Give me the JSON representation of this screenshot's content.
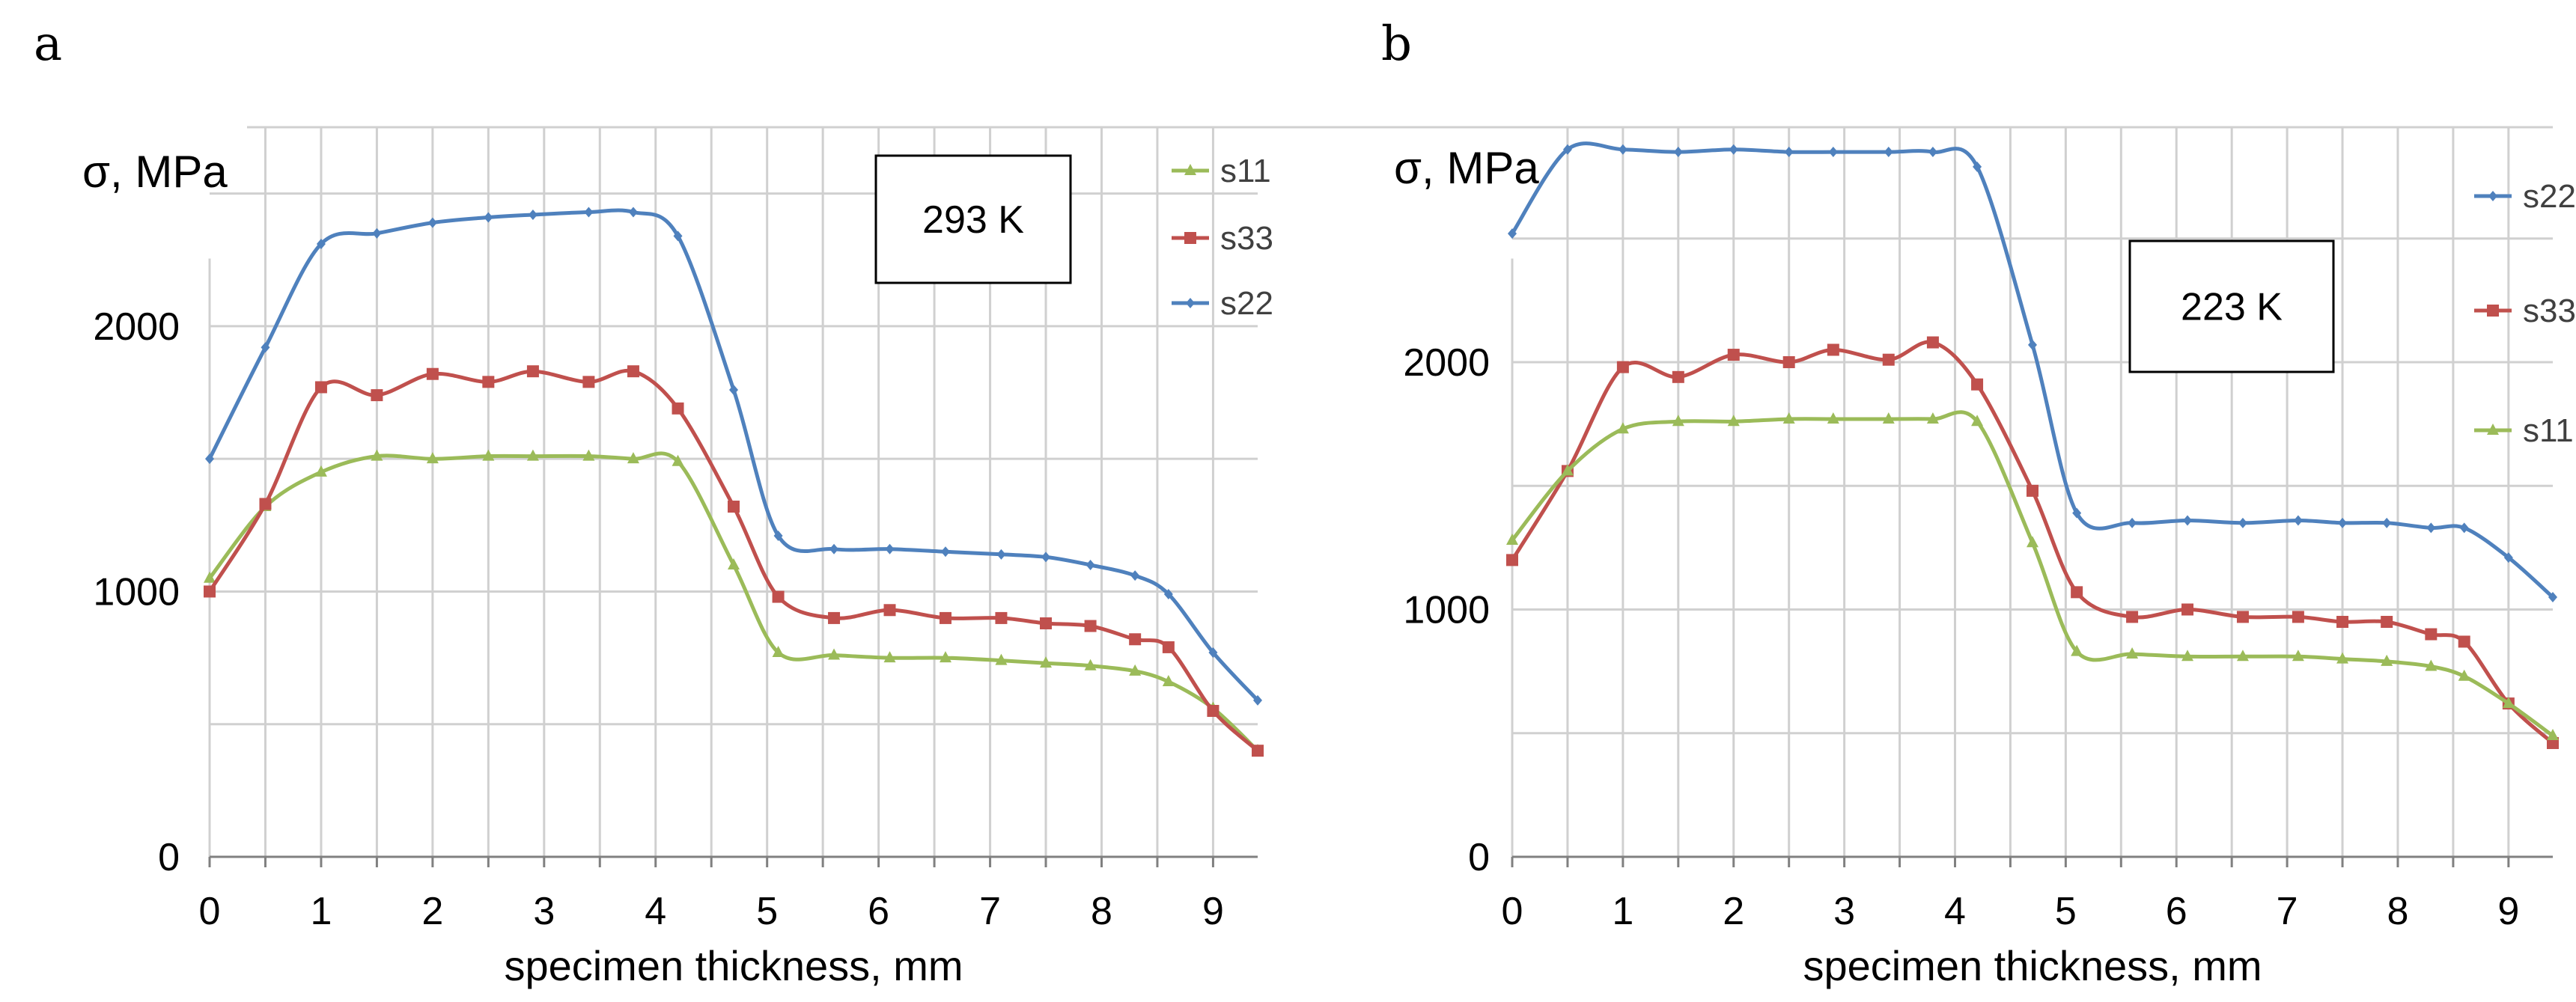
{
  "chart_data": [
    {
      "type": "line",
      "panel_label": "a",
      "ylabel": "σ, MPa",
      "xlabel": "specimen thickness, mm",
      "annotation": "293 K",
      "xlim": [
        0,
        9.4
      ],
      "ylim": [
        0,
        2750
      ],
      "x_ticks": [
        "0",
        "1",
        "2",
        "3",
        "4",
        "5",
        "6",
        "7",
        "8",
        "9"
      ],
      "y_ticks": [
        {
          "value": 0,
          "label": "0"
        },
        {
          "value": 1000,
          "label": "1000"
        },
        {
          "value": 2000,
          "label": "2000"
        }
      ],
      "grid": true,
      "legend_position": "top-right",
      "x": [
        0,
        0.5,
        1,
        1.5,
        2,
        2.5,
        2.9,
        3.4,
        3.8,
        4.2,
        4.7,
        5.1,
        5.6,
        6.1,
        6.6,
        7.1,
        7.5,
        7.9,
        8.3,
        8.6,
        9,
        9.4
      ],
      "series": [
        {
          "name": "s11",
          "color": "#9bbb59",
          "marker": "triangle",
          "values": [
            1050,
            1320,
            1450,
            1510,
            1500,
            1510,
            1510,
            1510,
            1500,
            1490,
            1100,
            770,
            760,
            750,
            750,
            740,
            730,
            720,
            700,
            660,
            560,
            400
          ]
        },
        {
          "name": "s33",
          "color": "#c0504d",
          "marker": "square",
          "values": [
            1000,
            1330,
            1770,
            1740,
            1820,
            1790,
            1830,
            1790,
            1830,
            1690,
            1320,
            980,
            900,
            930,
            900,
            900,
            880,
            870,
            820,
            790,
            550,
            400
          ]
        },
        {
          "name": "s22",
          "color": "#4f81bd",
          "marker": "diamond",
          "values": [
            1500,
            1920,
            2310,
            2350,
            2390,
            2410,
            2420,
            2430,
            2430,
            2340,
            1760,
            1210,
            1160,
            1160,
            1150,
            1140,
            1130,
            1100,
            1060,
            990,
            770,
            590
          ]
        }
      ]
    },
    {
      "type": "line",
      "panel_label": "b",
      "ylabel": "σ, MPa",
      "xlabel": "specimen thickness, mm",
      "annotation": "223 K",
      "xlim": [
        0,
        9.4
      ],
      "ylim": [
        0,
        2950
      ],
      "x_ticks": [
        "0",
        "1",
        "2",
        "3",
        "4",
        "5",
        "6",
        "7",
        "8",
        "9"
      ],
      "y_ticks": [
        {
          "value": 0,
          "label": "0"
        },
        {
          "value": 1000,
          "label": "1000"
        },
        {
          "value": 2000,
          "label": "2000"
        }
      ],
      "grid": true,
      "legend_position": "right",
      "x": [
        0,
        0.5,
        1,
        1.5,
        2,
        2.5,
        2.9,
        3.4,
        3.8,
        4.2,
        4.7,
        5.1,
        5.6,
        6.1,
        6.6,
        7.1,
        7.5,
        7.9,
        8.3,
        8.6,
        9,
        9.4
      ],
      "series": [
        {
          "name": "s22",
          "color": "#4f81bd",
          "marker": "diamond",
          "values": [
            2520,
            2860,
            2860,
            2850,
            2860,
            2850,
            2850,
            2850,
            2850,
            2790,
            2070,
            1390,
            1350,
            1360,
            1350,
            1360,
            1350,
            1350,
            1330,
            1330,
            1210,
            1050
          ]
        },
        {
          "name": "s33",
          "color": "#c0504d",
          "marker": "square",
          "values": [
            1200,
            1560,
            1980,
            1940,
            2030,
            2000,
            2050,
            2010,
            2080,
            1910,
            1480,
            1070,
            970,
            1000,
            970,
            970,
            950,
            950,
            900,
            870,
            620,
            460
          ]
        },
        {
          "name": "s11",
          "color": "#9bbb59",
          "marker": "triangle",
          "values": [
            1280,
            1560,
            1730,
            1760,
            1760,
            1770,
            1770,
            1770,
            1770,
            1760,
            1270,
            830,
            820,
            810,
            810,
            810,
            800,
            790,
            770,
            730,
            620,
            490
          ]
        }
      ]
    }
  ]
}
